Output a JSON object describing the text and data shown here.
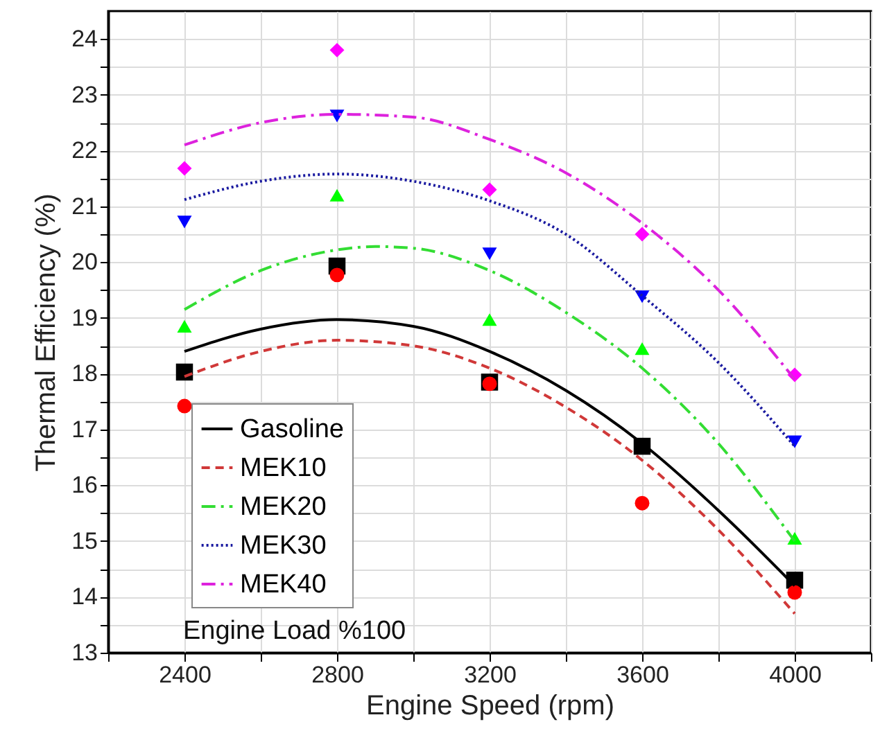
{
  "chart_data": {
    "type": "line",
    "xlabel": "Engine Speed (rpm)",
    "ylabel": "Thermal Efficiency (%)",
    "xlim": [
      2200,
      4200
    ],
    "xticks": [
      {
        "value": 2200,
        "label": null
      },
      2400,
      {
        "value": 2600,
        "label": null
      },
      2800,
      {
        "value": 3000,
        "label": null
      },
      3200,
      {
        "value": 3400,
        "label": null
      },
      3600,
      {
        "value": 3800,
        "label": null
      },
      4000,
      {
        "value": 4200,
        "label": null
      }
    ],
    "ylim": [
      13,
      24.5
    ],
    "yticks": [
      13,
      {
        "value": 13.5,
        "label": null
      },
      14,
      {
        "value": 14.5,
        "label": null
      },
      15,
      {
        "value": 15.5,
        "label": null
      },
      16,
      {
        "value": 16.5,
        "label": null
      },
      17,
      {
        "value": 17.5,
        "label": null
      },
      18,
      {
        "value": 18.5,
        "label": null
      },
      19,
      {
        "value": 19.5,
        "label": null
      },
      20,
      {
        "value": 20.5,
        "label": null
      },
      21,
      {
        "value": 21.5,
        "label": null
      },
      22,
      {
        "value": 22.5,
        "label": null
      },
      23,
      {
        "value": 23.5,
        "label": null
      },
      24
    ],
    "grid": true,
    "legend": "bottom left",
    "annotations": [
      "Engine Load %100"
    ],
    "series": [
      {
        "type": "scatter",
        "marker": "square",
        "color": "#000000",
        "x": [
          2400,
          2800,
          3200,
          3600,
          4000
        ],
        "values": [
          18.03,
          19.93,
          17.85,
          16.7,
          14.3
        ]
      },
      {
        "type": "scatter",
        "marker": "circle",
        "color": "#ff0000",
        "x": [
          2400,
          2800,
          3200,
          3600,
          4000
        ],
        "values": [
          17.42,
          19.77,
          17.82,
          15.68,
          14.08
        ]
      },
      {
        "type": "scatter",
        "marker": "triangle",
        "color": "#00ff00",
        "x": [
          2400,
          2800,
          3200,
          3600,
          4000
        ],
        "values": [
          18.85,
          21.2,
          18.97,
          18.45,
          15.05
        ]
      },
      {
        "type": "scatter",
        "marker": "triangle-down",
        "color": "#0000ff",
        "x": [
          2400,
          2800,
          3200,
          3600,
          4000
        ],
        "values": [
          20.72,
          22.62,
          20.15,
          19.38,
          16.78
        ]
      },
      {
        "type": "scatter",
        "marker": "diamond",
        "color": "#ff00ff",
        "x": [
          2400,
          2800,
          3200,
          3600,
          4000
        ],
        "values": [
          21.68,
          23.8,
          21.3,
          20.5,
          17.98
        ]
      },
      {
        "type": "line",
        "name": "Gasoline",
        "line_style": "solid",
        "color": "#000000",
        "x": [
          2400,
          2600,
          2800,
          3000,
          3200,
          3400,
          3600,
          3800,
          4000
        ],
        "values": [
          18.4,
          18.8,
          18.97,
          18.85,
          18.4,
          17.7,
          16.75,
          15.55,
          14.2
        ]
      },
      {
        "type": "line",
        "name": "MEK10",
        "line_style": "dashed",
        "color": "#d03838",
        "x": [
          2400,
          2600,
          2800,
          3000,
          3200,
          3400,
          3600,
          3800,
          4000
        ],
        "values": [
          17.95,
          18.4,
          18.6,
          18.5,
          18.1,
          17.4,
          16.45,
          15.2,
          13.7
        ]
      },
      {
        "type": "line",
        "name": "MEK20",
        "line_style": "dashdot",
        "color": "#33dd33",
        "x": [
          2400,
          2600,
          2800,
          2900,
          3000,
          3200,
          3400,
          3600,
          3800,
          4000
        ],
        "values": [
          19.15,
          19.85,
          20.22,
          20.28,
          20.25,
          19.85,
          19.1,
          18.1,
          16.75,
          15.0
        ]
      },
      {
        "type": "line",
        "name": "MEK30",
        "line_style": "dotted",
        "color": "#1a1aa0",
        "x": [
          2400,
          2600,
          2800,
          3000,
          3200,
          3400,
          3600,
          3800,
          4000
        ],
        "values": [
          21.12,
          21.45,
          21.58,
          21.45,
          21.1,
          20.5,
          19.4,
          18.2,
          16.7
        ]
      },
      {
        "type": "line",
        "name": "MEK40",
        "line_style": "dashdot",
        "color": "#dd22dd",
        "x": [
          2400,
          2600,
          2800,
          3000,
          3200,
          3400,
          3600,
          3800,
          4000
        ],
        "values": [
          22.1,
          22.5,
          22.65,
          22.6,
          22.2,
          21.6,
          20.7,
          19.5,
          17.9
        ]
      }
    ]
  }
}
